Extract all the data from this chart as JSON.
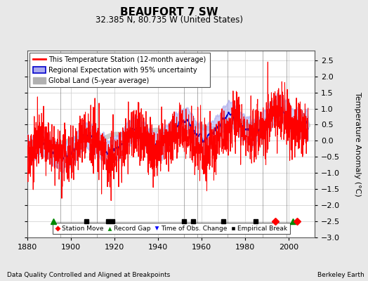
{
  "title": "BEAUFORT 7 SW",
  "subtitle": "32.385 N, 80.735 W (United States)",
  "ylabel": "Temperature Anomaly (°C)",
  "xlabel_note": "Data Quality Controlled and Aligned at Breakpoints",
  "credit": "Berkeley Earth",
  "xlim": [
    1880,
    2012
  ],
  "ylim": [
    -3,
    2.8
  ],
  "yticks": [
    -3,
    -2.5,
    -2,
    -1.5,
    -1,
    -0.5,
    0,
    0.5,
    1,
    1.5,
    2,
    2.5
  ],
  "xticks": [
    1880,
    1900,
    1920,
    1940,
    1960,
    1980,
    2000
  ],
  "bg_color": "#e8e8e8",
  "plot_bg_color": "#ffffff",
  "red_color": "#ff0000",
  "blue_color": "#0000cc",
  "blue_fill_color": "#aaaaee",
  "gray_color": "#b0b0b0",
  "vertical_lines": [
    1895,
    1912,
    1952,
    1958,
    1972,
    1988,
    1999
  ],
  "station_moves": [
    1994,
    2004
  ],
  "record_gaps": [
    1892,
    2002
  ],
  "empirical_breaks": [
    1907,
    1917,
    1919,
    1952,
    1956,
    1970,
    1985
  ],
  "seed": 42,
  "n_years": 130,
  "start_year": 1880
}
